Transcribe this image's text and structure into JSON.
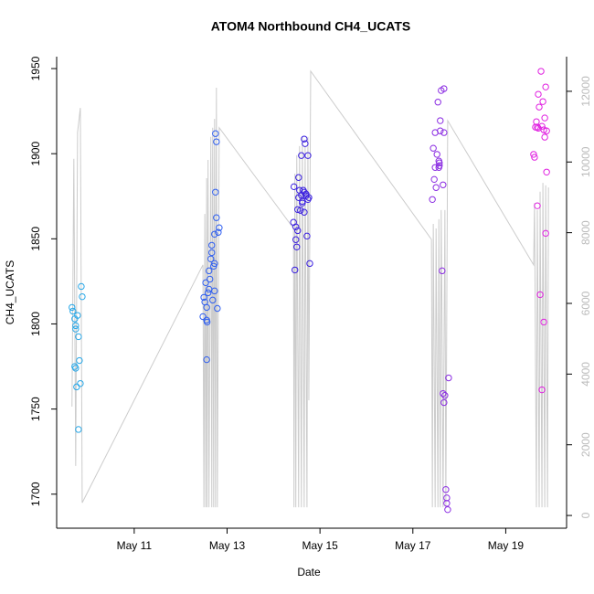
{
  "chart_data": {
    "type": "scatter",
    "title": "ATOM4 Northbound CH4_UCATS",
    "xlabel": "Date",
    "ylabel": "CH4_UCATS",
    "xlim": [
      9.33,
      20.31
    ],
    "ylim": [
      1680,
      1957
    ],
    "y2lim": [
      -360,
      12980
    ],
    "xticks": [
      {
        "value": 11,
        "label": "May 11"
      },
      {
        "value": 13,
        "label": "May 13"
      },
      {
        "value": 15,
        "label": "May 15"
      },
      {
        "value": 17,
        "label": "May 17"
      },
      {
        "value": 19,
        "label": "May 19"
      }
    ],
    "yticks": [
      1700,
      1750,
      1800,
      1850,
      1900,
      1950
    ],
    "y2ticks": [
      0,
      2000,
      4000,
      6000,
      8000,
      10000,
      12000
    ],
    "series": [
      {
        "type": "line",
        "axis": "y2",
        "color": "#cccccc",
        "x": [
          9.66,
          9.7,
          9.74,
          9.78,
          9.84,
          9.88,
          12.48,
          12.5,
          12.52,
          12.54,
          12.56,
          12.57,
          12.59,
          12.61,
          12.65,
          12.67,
          12.69,
          12.71,
          12.73,
          12.75,
          12.77,
          12.79,
          12.83,
          14.43,
          14.44,
          14.46,
          14.48,
          14.5,
          14.54,
          14.56,
          14.6,
          14.62,
          14.66,
          14.68,
          14.72,
          14.74,
          14.76,
          14.8,
          17.4,
          17.42,
          17.44,
          17.48,
          17.5,
          17.54,
          17.56,
          17.59,
          17.61,
          17.63,
          17.65,
          17.69,
          17.71,
          17.75,
          19.6,
          19.62,
          19.66,
          19.68,
          19.72,
          19.74,
          19.78,
          19.8,
          19.84,
          19.86,
          19.9,
          19.92
        ],
        "values": [
          3080,
          10090,
          1400,
          10840,
          11530,
          360,
          7090,
          230,
          8530,
          230,
          9540,
          230,
          10060,
          230,
          10710,
          230,
          10970,
          230,
          11220,
          230,
          12100,
          230,
          10970,
          8120,
          230,
          9670,
          230,
          10190,
          230,
          10450,
          230,
          10710,
          230,
          10450,
          230,
          10710,
          3260,
          12570,
          7810,
          230,
          8250,
          230,
          8120,
          230,
          8380,
          230,
          8640,
          5280,
          230,
          8640,
          230,
          11170,
          7090,
          8840,
          230,
          8640,
          230,
          9160,
          230,
          9410,
          230,
          9340,
          230,
          9280
        ]
      },
      {
        "type": "scatter",
        "color": "#29a8e8",
        "x": [
          9.66,
          9.68,
          9.72,
          9.74,
          9.74,
          9.72,
          9.74,
          9.78,
          9.8,
          9.86,
          9.88,
          9.82,
          9.76,
          9.84,
          9.8
        ],
        "values": [
          1809.7,
          1807.5,
          1803,
          1799,
          1797,
          1775,
          1774,
          1805,
          1792.5,
          1822,
          1816,
          1778.5,
          1763,
          1765,
          1738
        ]
      },
      {
        "type": "scatter",
        "color": "#2f5ff0",
        "x": [
          12.48,
          12.5,
          12.52,
          12.54,
          12.56,
          12.56,
          12.57,
          12.56,
          12.59,
          12.61,
          12.61,
          12.63,
          12.65,
          12.67,
          12.67,
          12.69,
          12.71,
          12.73,
          12.73,
          12.75,
          12.75,
          12.77,
          12.77,
          12.79,
          12.81,
          12.83,
          12.73
        ],
        "values": [
          1804.3,
          1815.6,
          1812.9,
          1824.2,
          1809.7,
          1802.2,
          1801.1,
          1779,
          1818.3,
          1831.2,
          1820.4,
          1826.3,
          1838.2,
          1846.2,
          1841.9,
          1814,
          1833.9,
          1852.7,
          1819.4,
          1877.4,
          1911.8,
          1907,
          1862.4,
          1809.1,
          1853.8,
          1856.5,
          1835.5
        ]
      },
      {
        "type": "scatter",
        "color": "#3a1fe0",
        "x": [
          14.43,
          14.44,
          14.46,
          14.48,
          14.48,
          14.5,
          14.52,
          14.52,
          14.54,
          14.54,
          14.56,
          14.58,
          14.6,
          14.6,
          14.62,
          14.64,
          14.66,
          14.66,
          14.68,
          14.7,
          14.7,
          14.72,
          14.74,
          14.74,
          14.76,
          14.78,
          14.66,
          14.62
        ],
        "values": [
          1859.7,
          1880.6,
          1831.7,
          1857,
          1849.5,
          1845.2,
          1854.8,
          1867.2,
          1874.2,
          1886,
          1878.5,
          1866.7,
          1898.9,
          1875.6,
          1872,
          1878.5,
          1908.6,
          1877.4,
          1905.9,
          1875.3,
          1876.3,
          1851.6,
          1898.9,
          1873.1,
          1874.2,
          1835.5,
          1865.6,
          1871
        ]
      },
      {
        "type": "scatter",
        "color": "#8a2be2",
        "x": [
          17.42,
          17.44,
          17.46,
          17.48,
          17.48,
          17.5,
          17.52,
          17.54,
          17.56,
          17.57,
          17.57,
          17.59,
          17.61,
          17.59,
          17.63,
          17.65,
          17.65,
          17.67,
          17.67,
          17.67,
          17.69,
          17.71,
          17.73,
          17.73,
          17.75,
          17.77,
          17.56
        ],
        "values": [
          1873.1,
          1903.2,
          1884.9,
          1891.9,
          1912.4,
          1880.1,
          1899.6,
          1930.3,
          1891.9,
          1893,
          1894.6,
          1913.4,
          1937.1,
          1919.4,
          1831.2,
          1759.1,
          1881.7,
          1938.2,
          1912.4,
          1753.8,
          1758,
          1702.7,
          1697.8,
          1694.6,
          1690.9,
          1768.3,
          1895.7
        ]
      },
      {
        "type": "scatter",
        "color": "#e020e0",
        "x": [
          19.6,
          19.62,
          19.64,
          19.66,
          19.68,
          19.68,
          19.7,
          19.72,
          19.74,
          19.76,
          19.78,
          19.78,
          19.8,
          19.82,
          19.82,
          19.84,
          19.84,
          19.86,
          19.88,
          19.86,
          19.88,
          19.7
        ],
        "values": [
          1899.6,
          1897.9,
          1915.6,
          1918.8,
          1869.4,
          1915.6,
          1934.9,
          1927.4,
          1817.2,
          1948.4,
          1916.1,
          1761.3,
          1930.6,
          1801.1,
          1914,
          1909.7,
          1921,
          1939.2,
          1913.4,
          1853.2,
          1889.2,
          1915
        ]
      }
    ]
  }
}
